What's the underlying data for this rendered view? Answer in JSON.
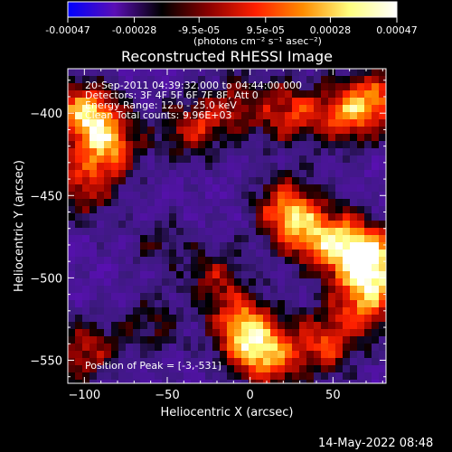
{
  "colorbar": {
    "ticks": [
      "-0.00047",
      "-0.00028",
      "-9.5e-05",
      "9.5e-05",
      "0.00028",
      "0.00047"
    ],
    "tick_values": [
      -0.00047,
      -0.00028,
      -9.5e-05,
      9.5e-05,
      0.00028,
      0.00047
    ],
    "range": [
      -0.00047,
      0.00047
    ],
    "unit_label": "(photons cm⁻² s⁻¹ asec⁻²)",
    "stops": [
      "#0000ff",
      "#5a0fb4",
      "#000000",
      "#8b0000",
      "#ff2000",
      "#ff8c00",
      "#ffff80",
      "#ffffff"
    ]
  },
  "chart_data": {
    "type": "heatmap",
    "title": "Reconstructed RHESSI Image",
    "xlabel": "Heliocentric X (arcsec)",
    "ylabel": "Heliocentric Y (arcsec)",
    "xlim": [
      -110,
      82
    ],
    "ylim": [
      -564,
      -373
    ],
    "x_ticks": [
      -100,
      -50,
      0,
      50
    ],
    "y_ticks": [
      -400,
      -450,
      -500,
      -550
    ],
    "x_tick_labels": [
      "−100",
      "−50",
      "0",
      "50"
    ],
    "y_tick_labels": [
      "−400",
      "−450",
      "−500",
      "−550"
    ],
    "annotations": [
      "20-Sep-2011 04:39:32.000 to 04:44:00.000",
      "Detectors: 3F 4F 5F 6F 7F 8F, Att 0",
      "Energy Range: 12.0 - 25.0 keV",
      "Clean     Total counts: 9.96E+03"
    ],
    "peak_label": "Position of Peak = [-3,-531]",
    "peak_position": [
      -3,
      -531
    ],
    "hot_regions": [
      {
        "x": -100,
        "y": -400,
        "amp": 1.0
      },
      {
        "x": -85,
        "y": -420,
        "amp": 0.8
      },
      {
        "x": -100,
        "y": -445,
        "amp": 0.6
      },
      {
        "x": -35,
        "y": -410,
        "amp": 0.6
      },
      {
        "x": -10,
        "y": -395,
        "amp": 0.5
      },
      {
        "x": 25,
        "y": -400,
        "amp": 0.7
      },
      {
        "x": 60,
        "y": -400,
        "amp": 0.8
      },
      {
        "x": 80,
        "y": -390,
        "amp": 0.6
      },
      {
        "x": 55,
        "y": -480,
        "amp": 0.9
      },
      {
        "x": 75,
        "y": -490,
        "amp": 1.0
      },
      {
        "x": 70,
        "y": -515,
        "amp": 0.8
      },
      {
        "x": 30,
        "y": -470,
        "amp": 0.7
      },
      {
        "x": 20,
        "y": -455,
        "amp": 0.6
      },
      {
        "x": -3,
        "y": -531,
        "amp": 1.0
      },
      {
        "x": 10,
        "y": -550,
        "amp": 0.8
      },
      {
        "x": 45,
        "y": -540,
        "amp": 0.7
      },
      {
        "x": -100,
        "y": -545,
        "amp": 0.6
      },
      {
        "x": -20,
        "y": -500,
        "amp": 0.5
      },
      {
        "x": -60,
        "y": -530,
        "amp": 0.4
      },
      {
        "x": -55,
        "y": -480,
        "amp": 0.3
      }
    ]
  },
  "timestamp": "14-May-2022 08:48"
}
